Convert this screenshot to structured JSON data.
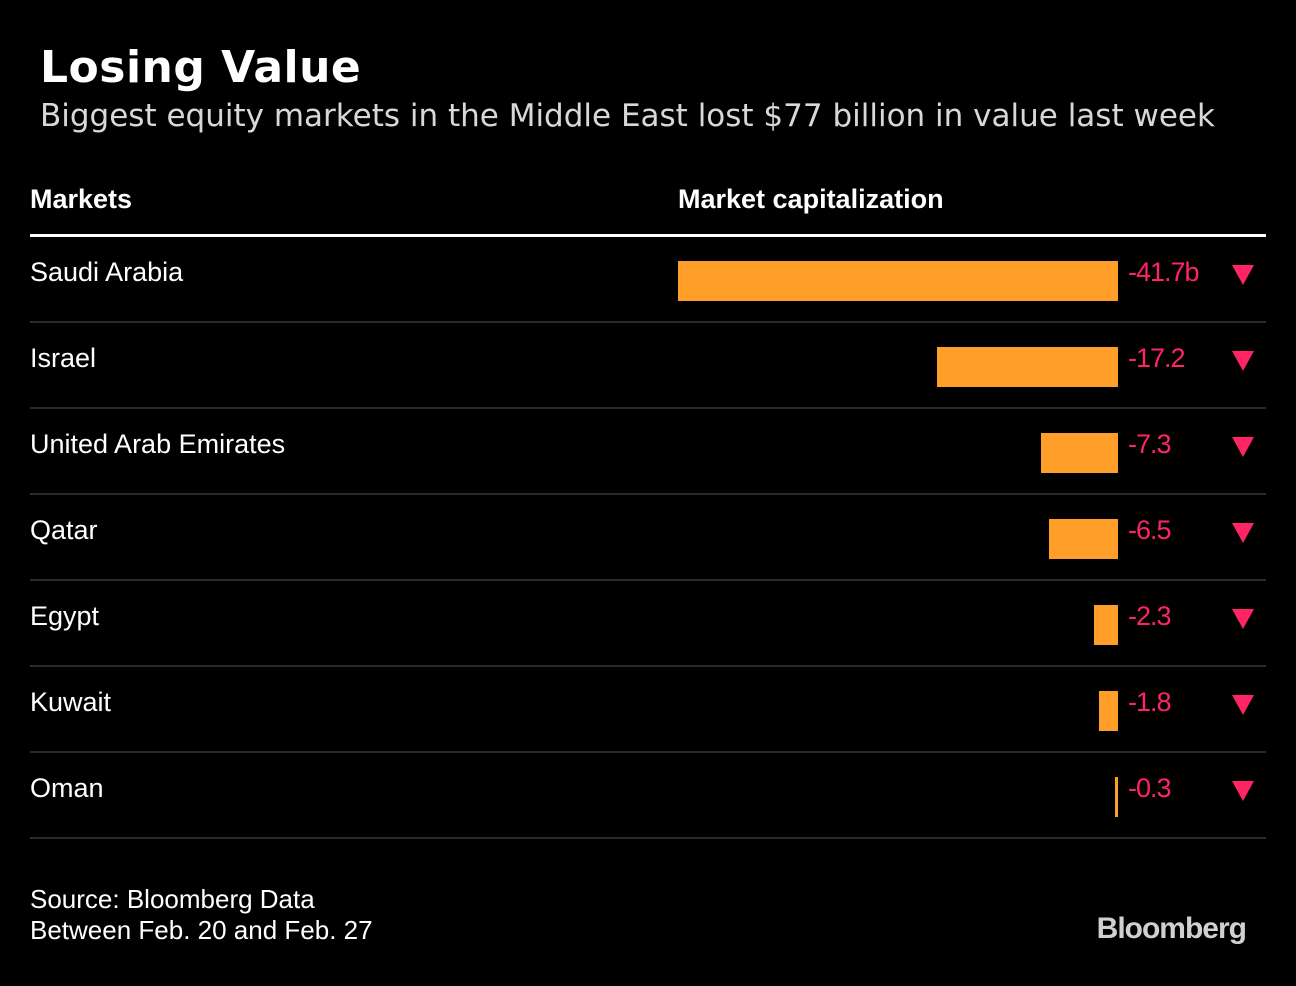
{
  "title": "Losing Value",
  "subtitle": "Biggest equity markets in the Middle East lost $77 billion in value last week",
  "colors": {
    "bar": "#ff9f29",
    "negative": "#ff2463",
    "background": "#000000"
  },
  "chart_data": {
    "type": "bar",
    "orientation": "horizontal",
    "columns": [
      "Markets",
      "Market capitalization"
    ],
    "categories": [
      "Saudi Arabia",
      "Israel",
      "United Arab Emirates",
      "Qatar",
      "Egypt",
      "Kuwait",
      "Oman"
    ],
    "values": [
      -41.7,
      -17.2,
      -7.3,
      -6.5,
      -2.3,
      -1.8,
      -0.3
    ],
    "labels": [
      "-41.7b",
      "-17.2",
      "-7.3",
      "-6.5",
      "-2.3",
      "-1.8",
      "-0.3"
    ],
    "unit": "billion USD",
    "indicator": "down-triangle"
  },
  "footer": {
    "source": "Source: Bloomberg Data",
    "note": "Between Feb. 20 and Feb. 27",
    "logo": "Bloomberg"
  }
}
